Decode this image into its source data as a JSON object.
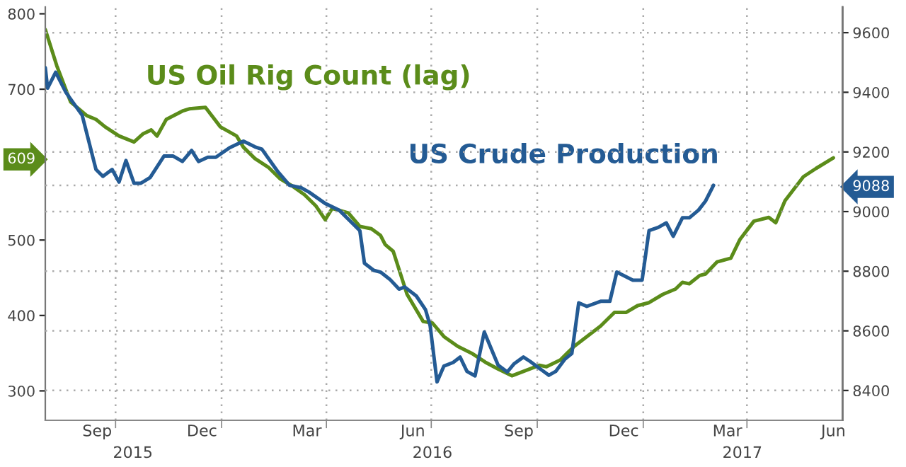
{
  "chart_data": {
    "type": "line",
    "xlim": [
      "2015-08-01",
      "2017-06-23"
    ],
    "xticks": [
      {
        "value": "2015-09-15",
        "label": "Sep"
      },
      {
        "value": "2015-12-15",
        "label": "Dec"
      },
      {
        "value": "2016-03-15",
        "label": "Mar"
      },
      {
        "value": "2016-06-15",
        "label": "Jun"
      },
      {
        "value": "2016-09-15",
        "label": "Sep"
      },
      {
        "value": "2016-12-15",
        "label": "Dec"
      },
      {
        "value": "2017-03-15",
        "label": "Mar"
      },
      {
        "value": "2017-06-15",
        "label": "Jun"
      },
      {
        "value": "2015-10-01",
        "label": null
      },
      {
        "value": "2016-01-01",
        "label": null
      },
      {
        "value": "2016-04-01",
        "label": null
      },
      {
        "value": "2016-07-01",
        "label": null
      },
      {
        "value": "2016-10-01",
        "label": null
      },
      {
        "value": "2017-01-01",
        "label": null
      },
      {
        "value": "2017-04-01",
        "label": null
      }
    ],
    "x2lim": [
      "2015-08-01",
      "2017-06-23"
    ],
    "x2ticks": [
      {
        "value": "2015-10-16",
        "label": "2015"
      },
      {
        "value": "2016-07-02",
        "label": "2016"
      },
      {
        "value": "2017-03-28",
        "label": "2017"
      }
    ],
    "ylim": [
      261,
      809
    ],
    "yticks": [
      300,
      400,
      500,
      609,
      700,
      800
    ],
    "y2lim": [
      8300,
      9686
    ],
    "y2ticks": [
      8400,
      8600,
      8800,
      9000,
      9088,
      9200,
      9400,
      9600
    ],
    "grid": true,
    "series": [
      {
        "name": "US Oil Rig Count (lag)",
        "color": "#5b8c1a",
        "x": [
          "2015-08-01",
          "2015-08-11",
          "2015-08-23",
          "2015-09-06",
          "2015-09-14",
          "2015-09-22",
          "2015-10-04",
          "2015-10-17",
          "2015-10-25",
          "2015-11-01",
          "2015-11-06",
          "2015-11-14",
          "2015-11-28",
          "2015-12-04",
          "2015-12-18",
          "2015-12-31",
          "2016-01-14",
          "2016-01-20",
          "2016-01-30",
          "2016-02-11",
          "2016-02-21",
          "2016-03-02",
          "2016-03-13",
          "2016-03-23",
          "2016-03-31",
          "2016-04-06",
          "2016-04-20",
          "2016-04-30",
          "2016-05-10",
          "2016-05-18",
          "2016-05-22",
          "2016-05-29",
          "2016-06-10",
          "2016-06-24",
          "2016-07-02",
          "2016-07-12",
          "2016-07-24",
          "2016-08-05",
          "2016-08-17",
          "2016-08-28",
          "2016-09-09",
          "2016-10-03",
          "2016-10-09",
          "2016-10-21",
          "2016-10-27",
          "2016-11-02",
          "2016-11-13",
          "2016-11-25",
          "2016-12-07",
          "2016-12-17",
          "2016-12-27",
          "2017-01-06",
          "2017-01-18",
          "2017-01-29",
          "2017-02-04",
          "2017-02-10",
          "2017-02-19",
          "2017-02-24",
          "2017-03-06",
          "2017-03-18",
          "2017-03-26",
          "2017-04-07",
          "2017-04-20",
          "2017-04-26",
          "2017-05-04",
          "2017-05-20",
          "2017-05-31",
          "2017-06-15"
        ],
        "values": [
          779,
          731,
          683,
          665,
          660,
          650,
          638,
          630,
          641,
          646,
          638,
          660,
          671,
          674,
          676,
          650,
          638,
          623,
          608,
          596,
          581,
          572,
          560,
          545,
          527,
          542,
          536,
          518,
          515,
          506,
          494,
          485,
          428,
          392,
          390,
          372,
          359,
          350,
          338,
          329,
          320,
          334,
          332,
          341,
          350,
          359,
          372,
          386,
          404,
          404,
          413,
          417,
          428,
          435,
          444,
          442,
          453,
          455,
          471,
          476,
          501,
          525,
          530,
          523,
          552,
          584,
          595,
          609
        ]
      },
      {
        "name": "US Crude Production",
        "color": "#245b94",
        "axis": "y2",
        "x": [
          "2015-08-01",
          "2015-08-03",
          "2015-08-10",
          "2015-08-19",
          "2015-09-02",
          "2015-09-14",
          "2015-09-20",
          "2015-09-28",
          "2015-10-04",
          "2015-10-10",
          "2015-10-17",
          "2015-10-23",
          "2015-10-31",
          "2015-11-12",
          "2015-11-20",
          "2015-11-28",
          "2015-12-06",
          "2015-12-12",
          "2015-12-20",
          "2015-12-27",
          "2016-01-08",
          "2016-01-20",
          "2016-01-30",
          "2016-02-05",
          "2016-02-19",
          "2016-02-29",
          "2016-03-10",
          "2016-03-17",
          "2016-03-31",
          "2016-04-12",
          "2016-04-24",
          "2016-04-30",
          "2016-05-04",
          "2016-05-12",
          "2016-05-18",
          "2016-05-26",
          "2016-06-03",
          "2016-06-08",
          "2016-06-18",
          "2016-06-26",
          "2016-06-30",
          "2016-07-06",
          "2016-07-12",
          "2016-07-20",
          "2016-07-26",
          "2016-08-01",
          "2016-08-08",
          "2016-08-16",
          "2016-08-28",
          "2016-09-05",
          "2016-09-11",
          "2016-09-19",
          "2016-09-25",
          "2016-10-03",
          "2016-10-11",
          "2016-10-17",
          "2016-10-25",
          "2016-10-31",
          "2016-11-06",
          "2016-11-13",
          "2016-11-25",
          "2016-12-03",
          "2016-12-09",
          "2016-12-23",
          "2016-12-31",
          "2017-01-06",
          "2017-01-14",
          "2017-01-21",
          "2017-01-27",
          "2017-02-04",
          "2017-02-10",
          "2017-02-18",
          "2017-02-24",
          "2017-03-03"
        ],
        "values": [
          9482,
          9414,
          9467,
          9399,
          9323,
          9141,
          9118,
          9141,
          9099,
          9171,
          9095,
          9095,
          9114,
          9186,
          9186,
          9168,
          9205,
          9168,
          9182,
          9182,
          9214,
          9236,
          9217,
          9209,
          9133,
          9088,
          9080,
          9065,
          9027,
          9005,
          8959,
          8936,
          8827,
          8803,
          8797,
          8773,
          8740,
          8747,
          8717,
          8671,
          8618,
          8429,
          8482,
          8494,
          8512,
          8464,
          8449,
          8596,
          8485,
          8462,
          8490,
          8512,
          8497,
          8474,
          8451,
          8464,
          8505,
          8524,
          8694,
          8682,
          8699,
          8699,
          8797,
          8770,
          8770,
          8936,
          8947,
          8962,
          8917,
          8979,
          8979,
          9005,
          9035,
          9088
        ]
      }
    ]
  }
}
